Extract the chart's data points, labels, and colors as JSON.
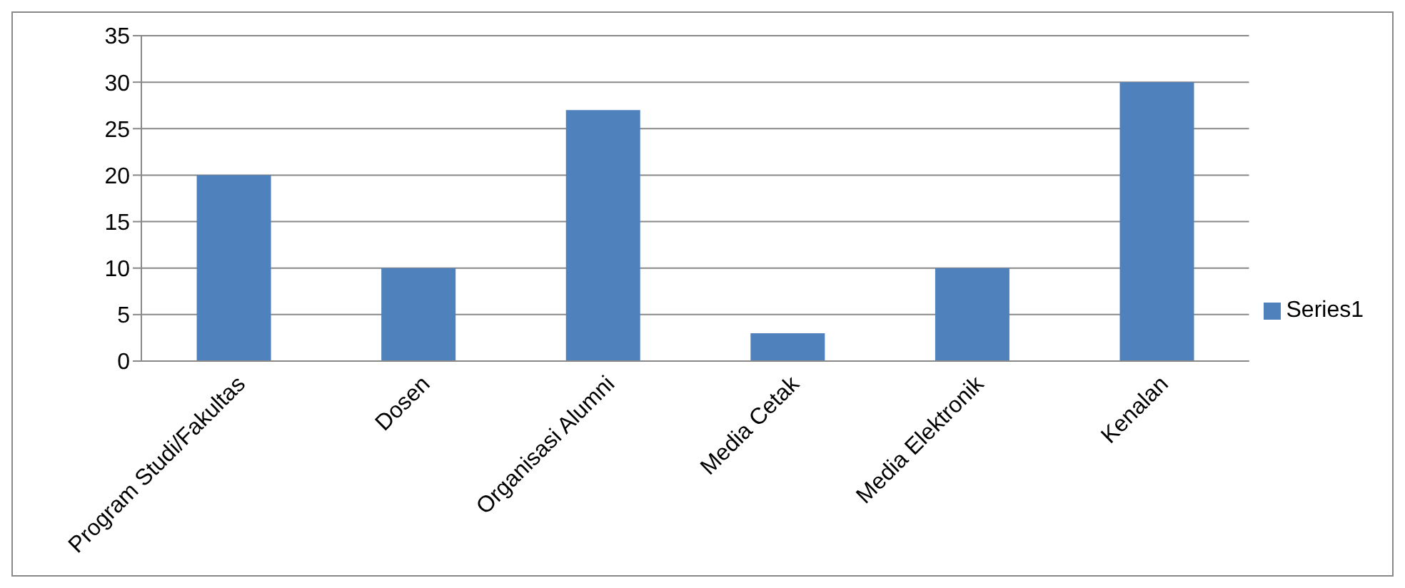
{
  "chart_data": {
    "type": "bar",
    "categories": [
      "Program Studi/Fakultas",
      "Dosen",
      "Organisasi Alumni",
      "Media Cetak",
      "Media Elektronik",
      "Kenalan"
    ],
    "series": [
      {
        "name": "Series1",
        "color": "#4f81bd",
        "values": [
          20,
          10,
          27,
          3,
          10,
          30
        ]
      }
    ],
    "ylim": [
      0,
      35
    ],
    "yticks": [
      0,
      5,
      10,
      15,
      20,
      25,
      30,
      35
    ],
    "grid": "y",
    "legend": "right"
  }
}
